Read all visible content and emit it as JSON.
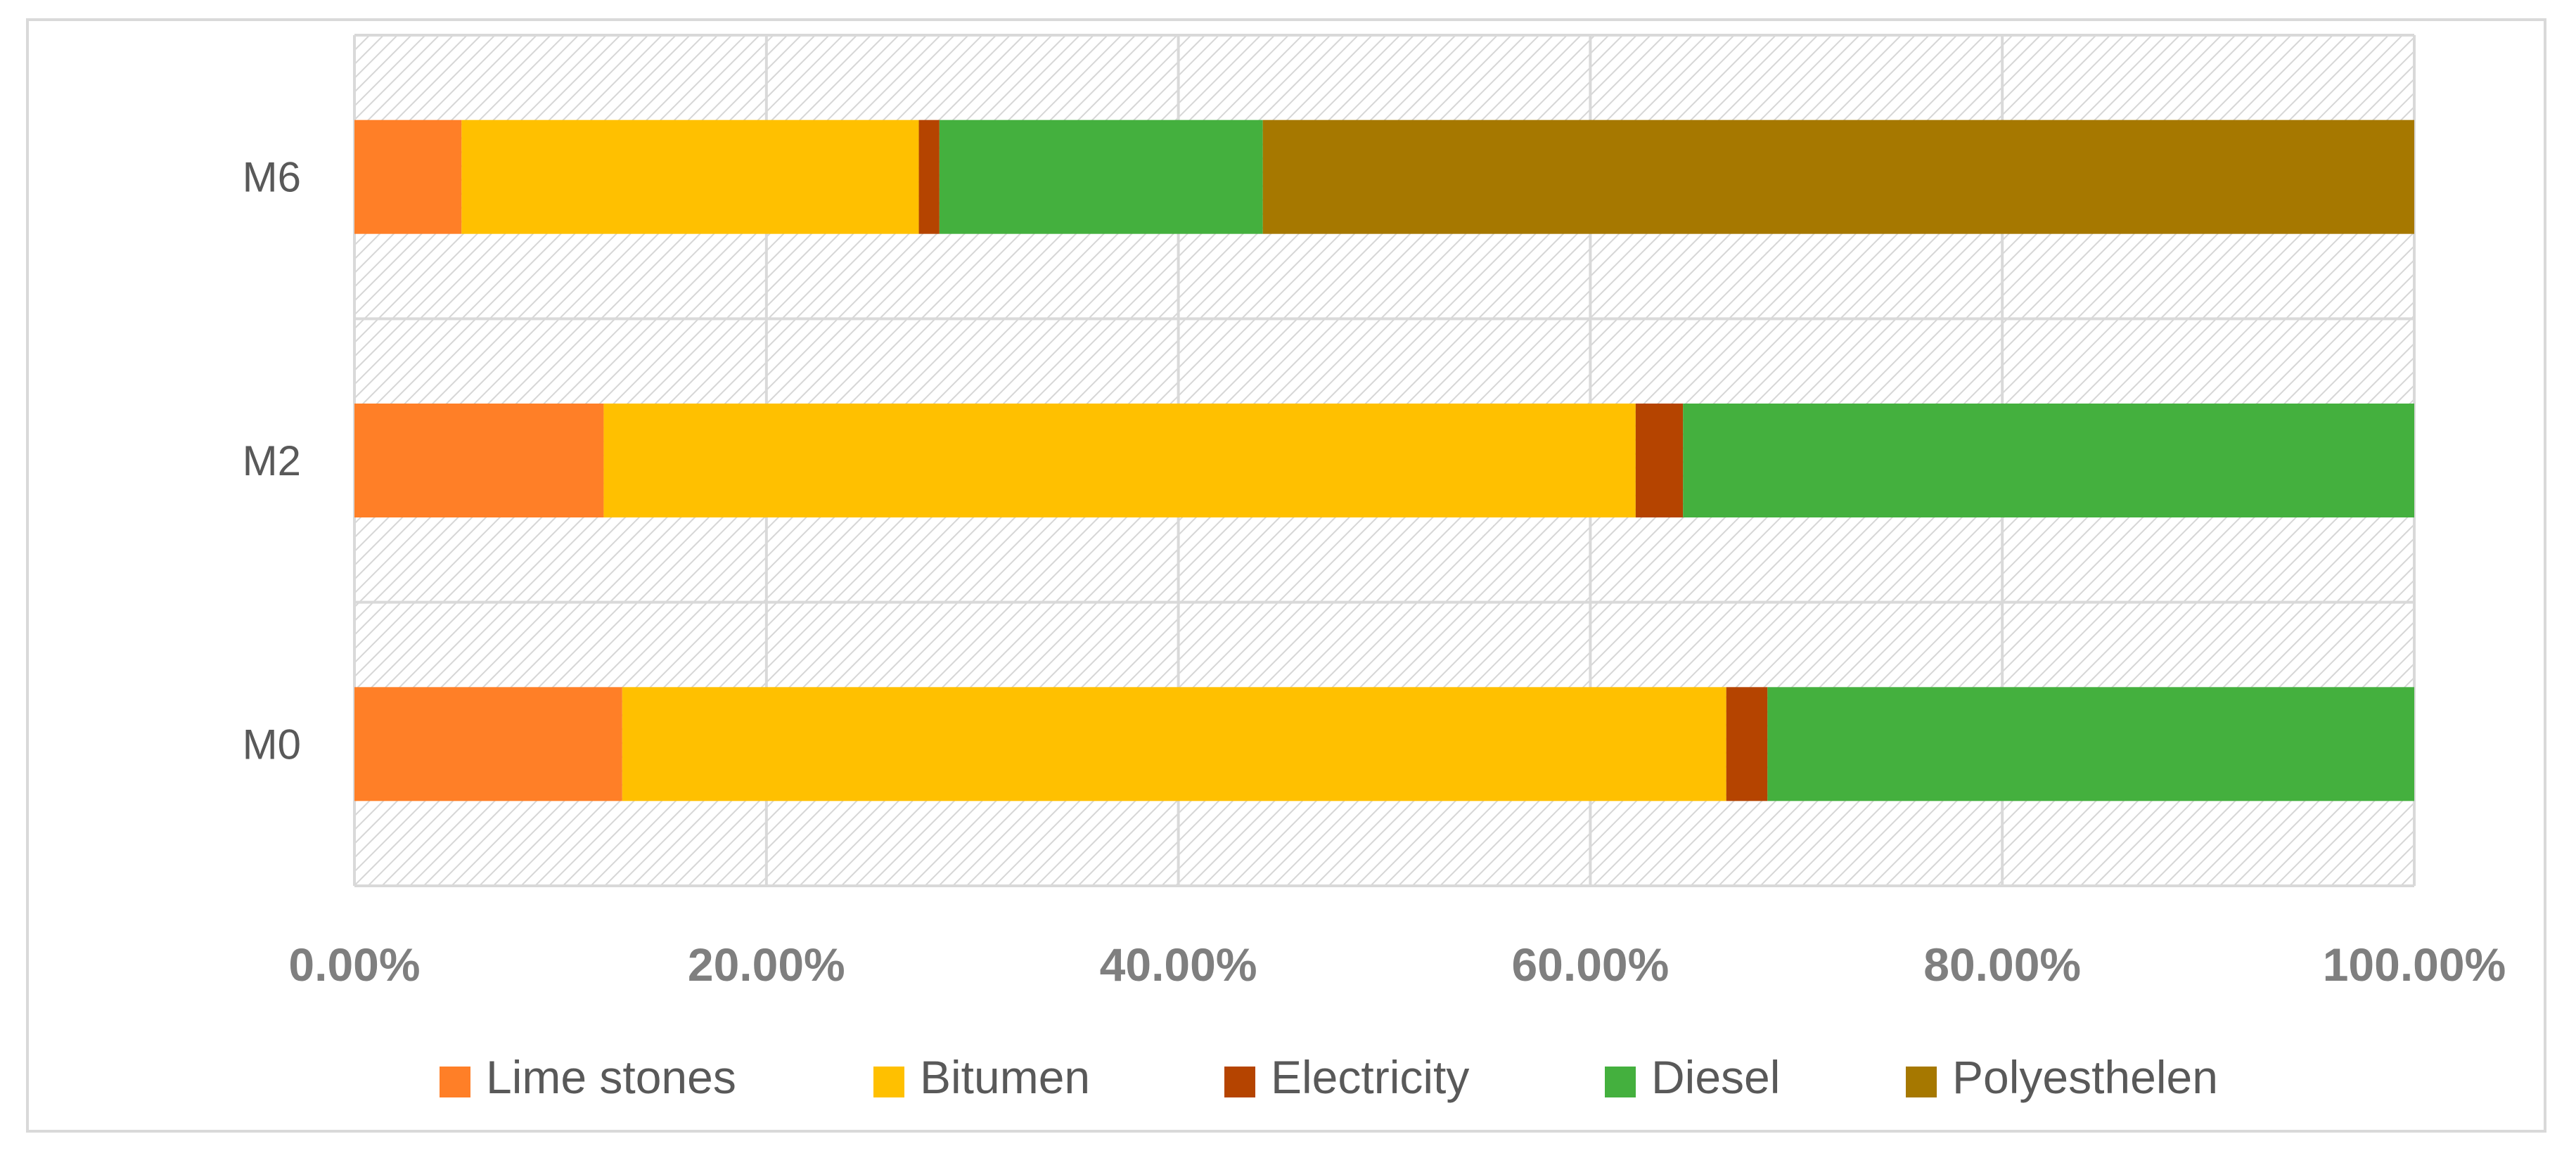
{
  "chart_data": {
    "type": "bar",
    "orientation": "horizontal",
    "stacked": "percent",
    "categories": [
      "M6",
      "M2",
      "M0"
    ],
    "series": [
      {
        "name": "Lime stones",
        "color": "#FF7F27",
        "values": [
          5.2,
          12.1,
          13.0
        ]
      },
      {
        "name": "Bitumen",
        "color": "#FFC000",
        "values": [
          22.2,
          50.1,
          53.6
        ]
      },
      {
        "name": "Electricity",
        "color": "#B54400",
        "values": [
          1.0,
          2.3,
          2.0
        ]
      },
      {
        "name": "Diesel",
        "color": "#44B03E",
        "values": [
          15.7,
          35.5,
          31.4
        ]
      },
      {
        "name": "Polyesthelen",
        "color": "#A67800",
        "values": [
          55.9,
          0,
          0
        ]
      }
    ],
    "x_ticks": [
      "0.00%",
      "20.00%",
      "40.00%",
      "60.00%",
      "80.00%",
      "100.00%"
    ],
    "xlim": [
      0,
      100
    ],
    "grid": true,
    "plot_background": "hatched",
    "legend_position": "bottom"
  }
}
